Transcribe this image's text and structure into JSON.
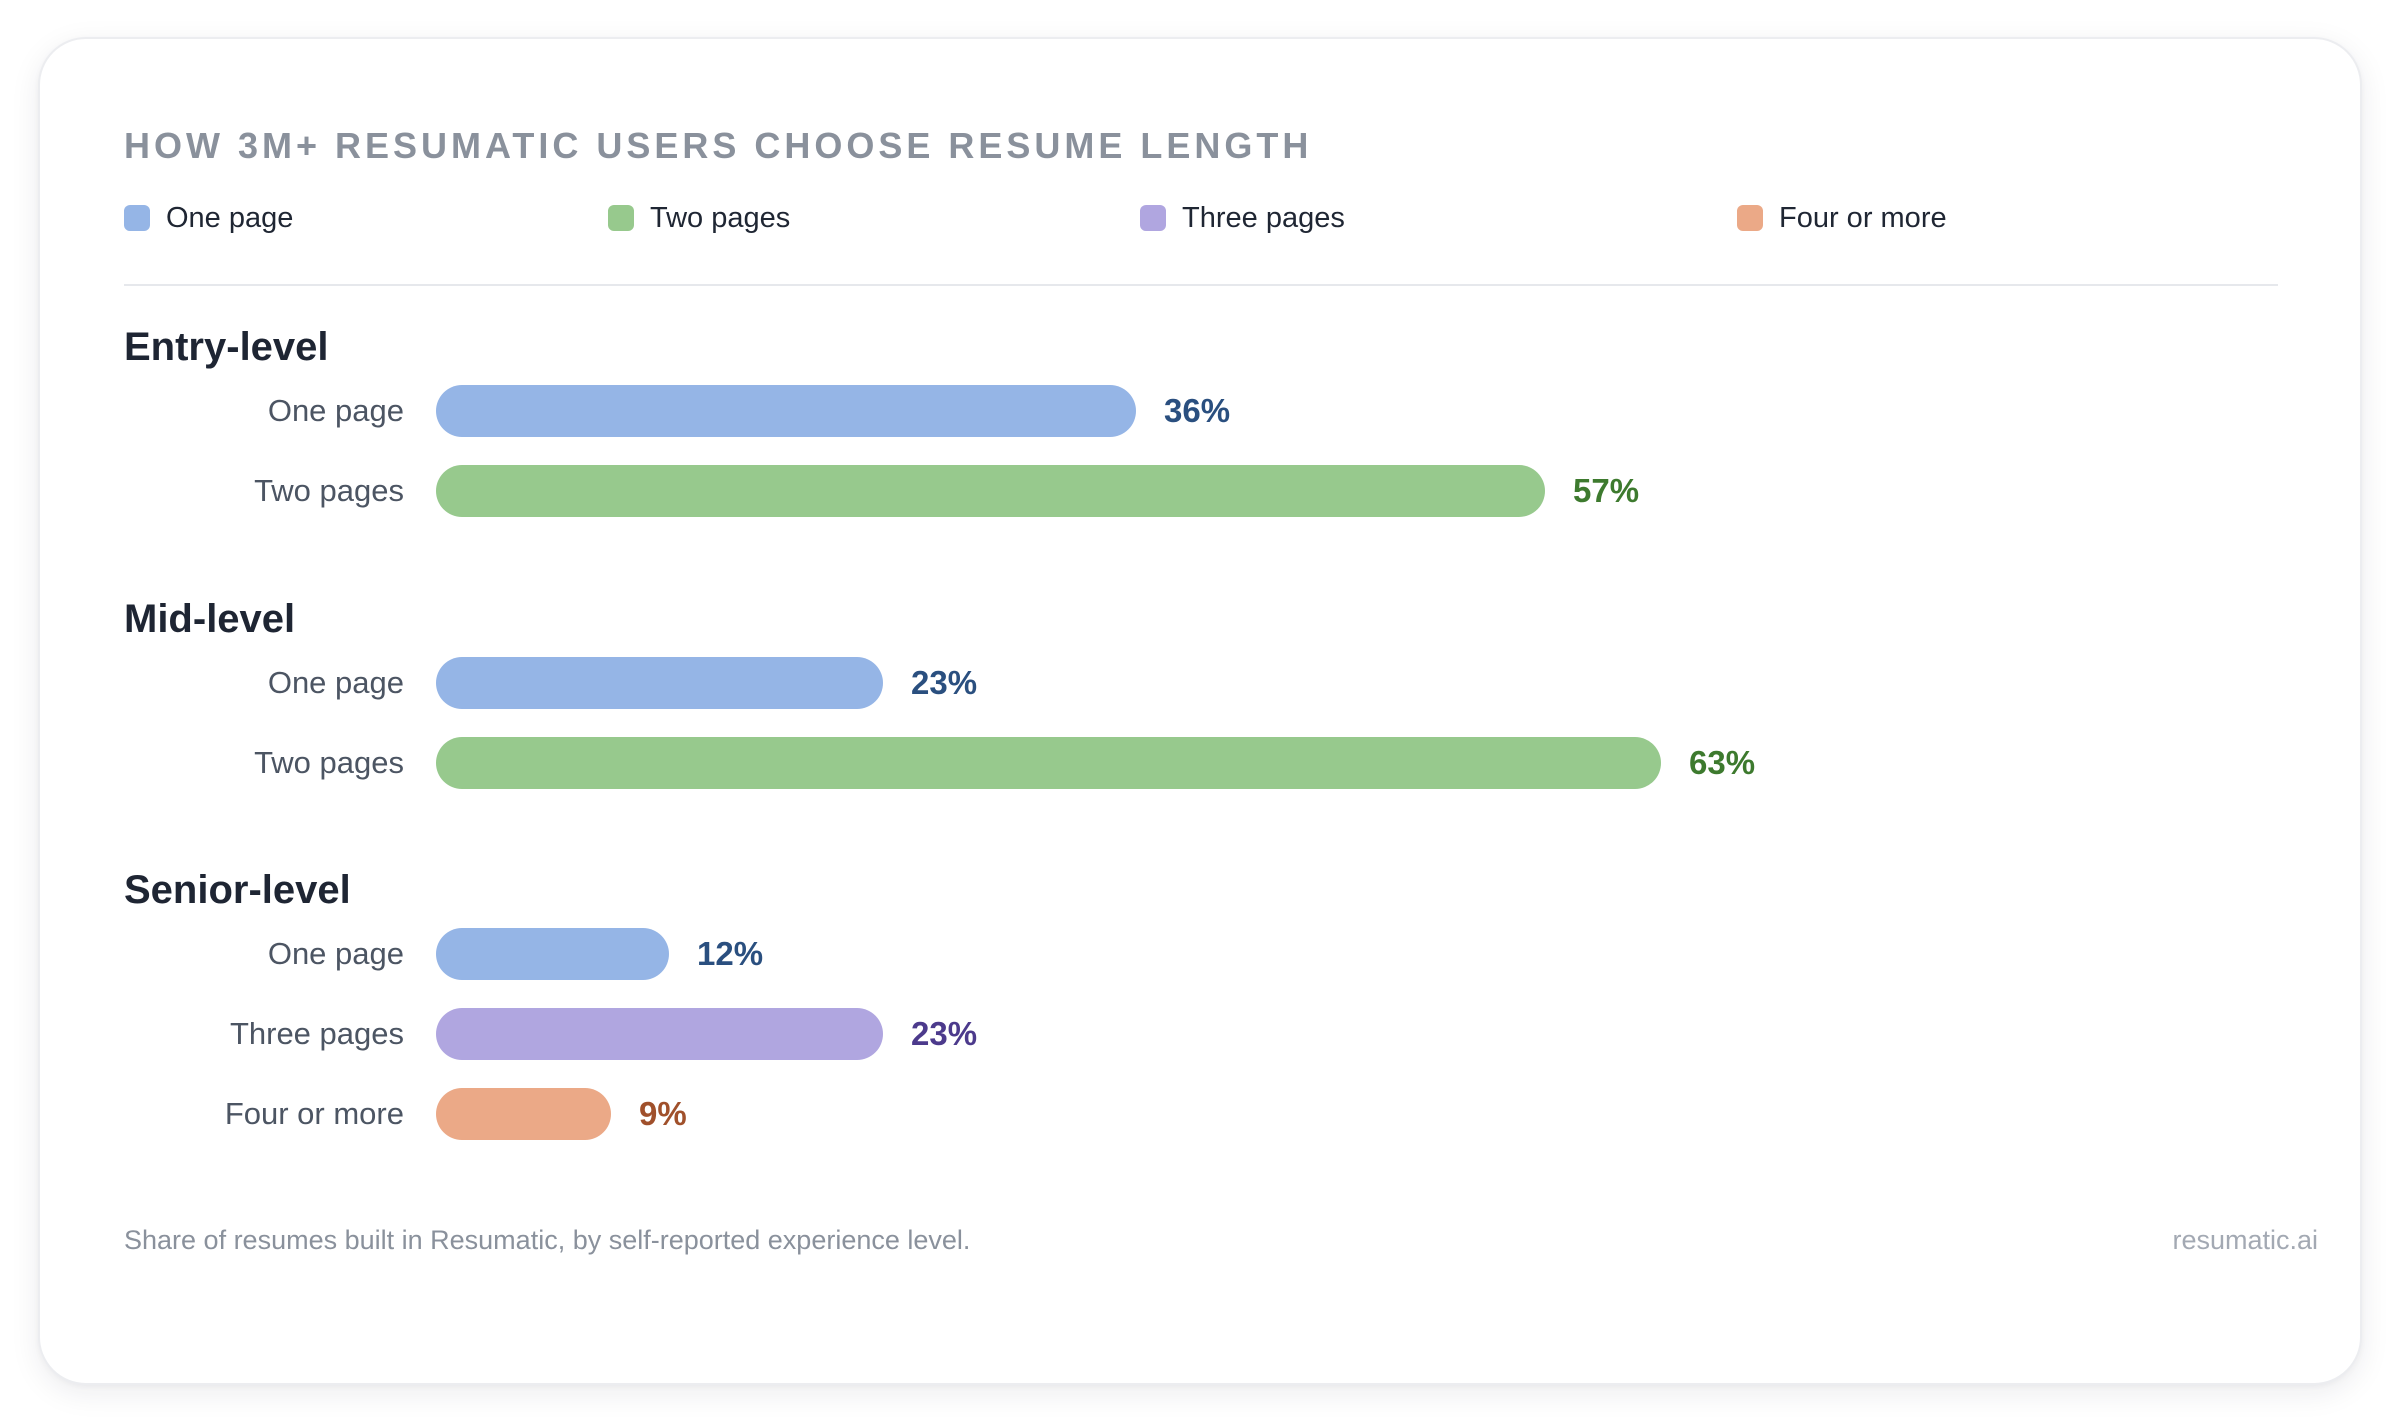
{
  "chart_data": {
    "type": "bar",
    "orientation": "horizontal",
    "title": "HOW 3M+ RESUMATIC USERS CHOOSE RESUME LENGTH",
    "legend": [
      {
        "key": "one",
        "label": "One page",
        "color": "#95b5e6"
      },
      {
        "key": "two",
        "label": "Two pages",
        "color": "#97c98d"
      },
      {
        "key": "three",
        "label": "Three pages",
        "color": "#b0a6e0"
      },
      {
        "key": "four",
        "label": "Four or more",
        "color": "#eba987"
      }
    ],
    "value_colors": {
      "one": "#2a4f7f",
      "two": "#3d7a2e",
      "three": "#4c3a8c",
      "four": "#a0502b"
    },
    "unit": "%",
    "xlim": [
      0,
      100
    ],
    "legend_position": "top",
    "groups": [
      {
        "name": "Entry-level",
        "bars": [
          {
            "key": "one",
            "label": "One page",
            "value": 36,
            "display": "36%"
          },
          {
            "key": "two",
            "label": "Two pages",
            "value": 57,
            "display": "57%"
          }
        ]
      },
      {
        "name": "Mid-level",
        "bars": [
          {
            "key": "one",
            "label": "One page",
            "value": 23,
            "display": "23%"
          },
          {
            "key": "two",
            "label": "Two pages",
            "value": 63,
            "display": "63%"
          }
        ]
      },
      {
        "name": "Senior-level",
        "bars": [
          {
            "key": "one",
            "label": "One page",
            "value": 12,
            "display": "12%"
          },
          {
            "key": "three",
            "label": "Three pages",
            "value": 23,
            "display": "23%"
          },
          {
            "key": "four",
            "label": "Four or more",
            "value": 9,
            "display": "9%"
          }
        ]
      }
    ]
  },
  "footer": {
    "caption": "Share of resumes built in Resumatic, by self-reported experience level.",
    "credit": "resumatic.ai"
  }
}
